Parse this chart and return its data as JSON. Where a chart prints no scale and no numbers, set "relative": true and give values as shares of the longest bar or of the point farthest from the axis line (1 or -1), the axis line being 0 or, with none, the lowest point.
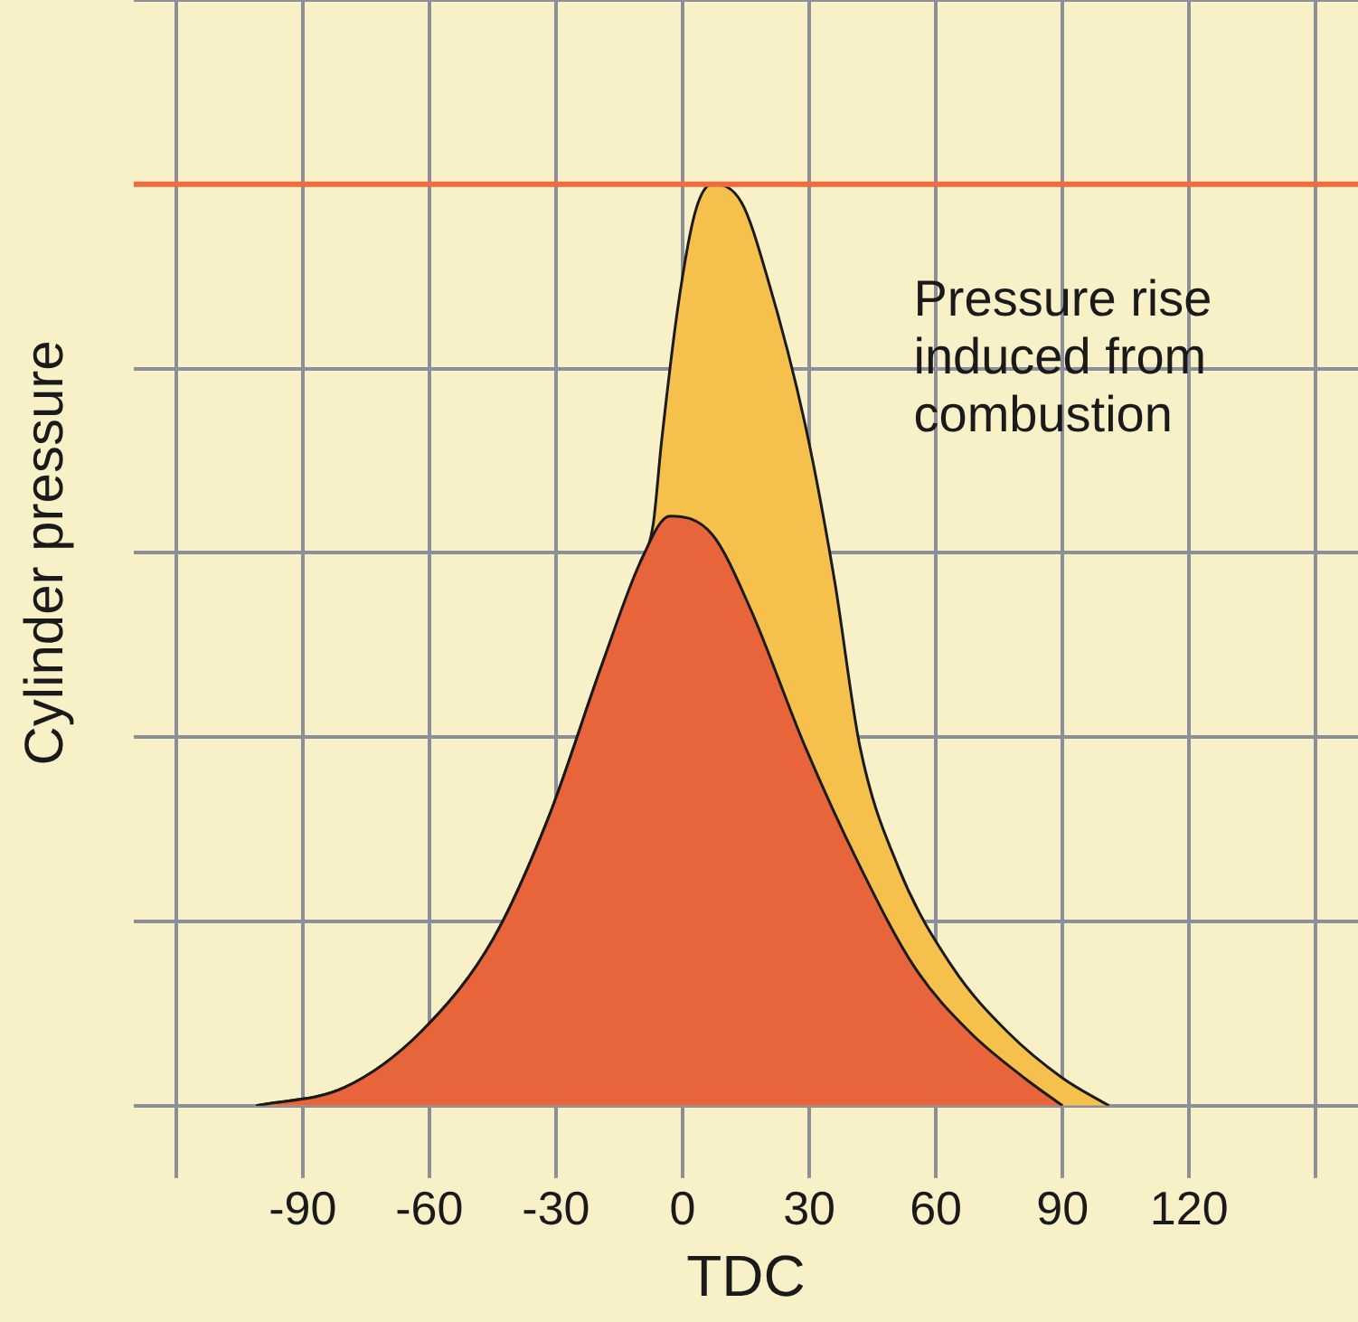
{
  "chart_data": {
    "type": "area",
    "xlabel": "TDC",
    "ylabel": "Cylinder pressure",
    "relative": true,
    "grid": true,
    "xlim": [
      -130,
      160
    ],
    "xticks": [
      {
        "value": -120,
        "label": null
      },
      -90,
      -60,
      -30,
      0,
      30,
      60,
      90,
      120,
      {
        "value": 150,
        "label": null
      }
    ],
    "annotations": [
      "Pressure rise\ninduced from\ncombustion"
    ],
    "ref_lines": [
      {
        "axis": "y",
        "value": 1,
        "color": "#f26a3d"
      }
    ],
    "series": [
      {
        "color": "#f5c14c",
        "x": [
          -101,
          -80,
          -62,
          -45,
          -32,
          -19,
          -10,
          -7,
          -5,
          -1,
          3,
          7,
          14,
          20,
          29,
          36,
          42,
          51,
          64,
          77,
          90,
          101
        ],
        "values": [
          0,
          0.02,
          0.08,
          0.18,
          0.31,
          0.48,
          0.59,
          0.63,
          0.72,
          0.87,
          0.97,
          1,
          0.98,
          0.9,
          0.74,
          0.57,
          0.39,
          0.26,
          0.15,
          0.08,
          0.03,
          0
        ]
      },
      {
        "color": "#e8643a",
        "x": [
          -101,
          -80,
          -62,
          -45,
          -32,
          -19,
          -10,
          -3,
          7,
          16,
          29,
          42,
          55,
          68,
          81,
          90
        ],
        "values": [
          0,
          0.02,
          0.08,
          0.18,
          0.31,
          0.48,
          0.59,
          0.64,
          0.62,
          0.54,
          0.39,
          0.26,
          0.15,
          0.08,
          0.03,
          0
        ]
      }
    ]
  }
}
